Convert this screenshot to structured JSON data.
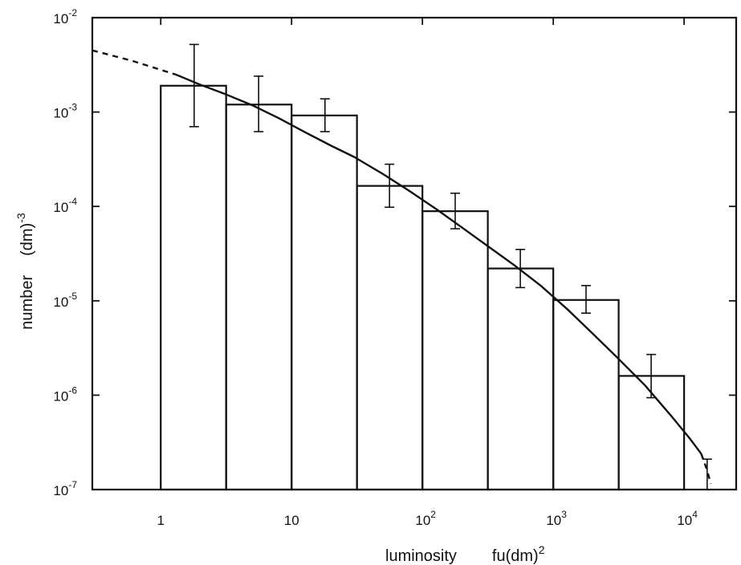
{
  "chart_data": {
    "type": "bar",
    "xlabel_main": "luminosity",
    "xlabel_unit": "fu(dm)",
    "xlabel_unit_sup": "2",
    "ylabel_main": "number",
    "ylabel_unit": "(dm)",
    "ylabel_unit_sup": "-3",
    "x_scale": "log",
    "y_scale": "log",
    "xlim": [
      0.3,
      25000
    ],
    "ylim": [
      1e-07,
      0.01
    ],
    "x_ticks": [
      {
        "value": 1,
        "base": "1",
        "exp": ""
      },
      {
        "value": 10,
        "base": "10",
        "exp": ""
      },
      {
        "value": 100,
        "base": "10",
        "exp": "2"
      },
      {
        "value": 1000,
        "base": "10",
        "exp": "3"
      },
      {
        "value": 10000,
        "base": "10",
        "exp": "4"
      }
    ],
    "y_ticks": [
      {
        "value": 0.01,
        "base": "10",
        "exp": "-2"
      },
      {
        "value": 0.001,
        "base": "10",
        "exp": "-3"
      },
      {
        "value": 0.0001,
        "base": "10",
        "exp": "-4"
      },
      {
        "value": 1e-05,
        "base": "10",
        "exp": "-5"
      },
      {
        "value": 1e-06,
        "base": "10",
        "exp": "-6"
      },
      {
        "value": 1e-07,
        "base": "10",
        "exp": "-7"
      }
    ],
    "bars": [
      {
        "x_left": 1,
        "x_right": 3.16,
        "value": 0.0019,
        "x_center": 1.8,
        "err_low": 0.0007,
        "err_high": 0.0052
      },
      {
        "x_left": 3.16,
        "x_right": 10,
        "value": 0.0012,
        "x_center": 5.6,
        "err_low": 0.00062,
        "err_high": 0.0024
      },
      {
        "x_left": 10,
        "x_right": 31.6,
        "value": 0.00092,
        "x_center": 18,
        "err_low": 0.00062,
        "err_high": 0.00138
      },
      {
        "x_left": 31.6,
        "x_right": 100,
        "value": 0.000165,
        "x_center": 56,
        "err_low": 9.8e-05,
        "err_high": 0.00028
      },
      {
        "x_left": 100,
        "x_right": 316,
        "value": 8.9e-05,
        "x_center": 178,
        "err_low": 5.8e-05,
        "err_high": 0.000138
      },
      {
        "x_left": 316,
        "x_right": 1000,
        "value": 2.2e-05,
        "x_center": 560,
        "err_low": 1.38e-05,
        "err_high": 3.5e-05
      },
      {
        "x_left": 1000,
        "x_right": 3160,
        "value": 1.02e-05,
        "x_center": 1780,
        "err_low": 7.4e-06,
        "err_high": 1.45e-05
      },
      {
        "x_left": 3160,
        "x_right": 10000,
        "value": 1.6e-06,
        "x_center": 5600,
        "err_low": 9.4e-07,
        "err_high": 2.7e-06
      }
    ],
    "extra_errorbar": {
      "x": 15000,
      "err_low": 1e-07,
      "err_high": 2.1e-07
    },
    "fit_curve": {
      "solid": [
        [
          1.3,
          0.0025
        ],
        [
          2,
          0.00195
        ],
        [
          3,
          0.00158
        ],
        [
          5,
          0.00118
        ],
        [
          8,
          0.00086
        ],
        [
          13,
          0.0006
        ],
        [
          20,
          0.00044
        ],
        [
          30,
          0.000335
        ],
        [
          50,
          0.00022
        ],
        [
          80,
          0.000145
        ],
        [
          130,
          9.2e-05
        ],
        [
          200,
          6e-05
        ],
        [
          300,
          4e-05
        ],
        [
          500,
          2.4e-05
        ],
        [
          800,
          1.45e-05
        ],
        [
          1300,
          8e-06
        ],
        [
          2000,
          4.5e-06
        ],
        [
          3000,
          2.6e-06
        ],
        [
          5000,
          1.28e-06
        ],
        [
          8000,
          6e-07
        ],
        [
          11000,
          3.5e-07
        ],
        [
          13500,
          2.4e-07
        ]
      ],
      "dashed_left": [
        [
          0.3,
          0.0045
        ],
        [
          0.6,
          0.0035
        ],
        [
          1.0,
          0.0028
        ],
        [
          1.3,
          0.0025
        ]
      ],
      "dashed_right": [
        [
          13500,
          2.4e-07
        ],
        [
          15000,
          1.6e-07
        ],
        [
          16000,
          1.15e-07
        ]
      ]
    }
  }
}
